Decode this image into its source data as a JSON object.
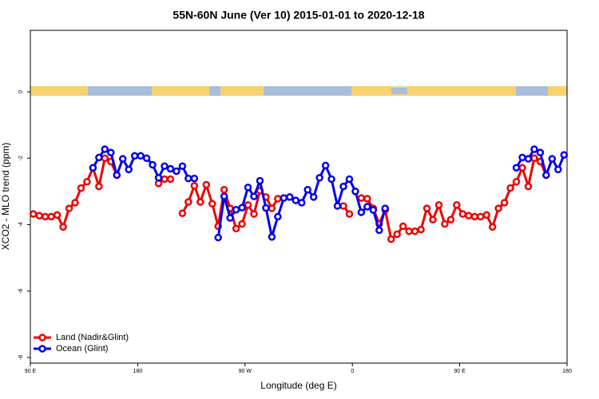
{
  "chart_data": {
    "type": "line",
    "title": "55N-60N June (Ver 10)   2015-01-01 to 2020-12-18",
    "x_label": "Longitude (deg E)",
    "y_label": "XCO2 - MLO trend (ppm)",
    "xlim": [
      90,
      540
    ],
    "ylim": [
      -8.17,
      1.85
    ],
    "xticks": [
      {
        "value": 90,
        "label": "90 E"
      },
      {
        "value": 180,
        "label": "180"
      },
      {
        "value": 270,
        "label": "90 W"
      },
      {
        "value": 360,
        "label": "0"
      },
      {
        "value": 450,
        "label": "90 E"
      },
      {
        "value": 540,
        "label": "180"
      }
    ],
    "yticks": [
      0,
      -2,
      -4,
      -6,
      -8
    ],
    "legend": "bottom left",
    "x": [
      92.5,
      97.5,
      102.5,
      107.5,
      112.5,
      117.5,
      122.5,
      127.5,
      132.5,
      137.5,
      142.5,
      147.5,
      152.5,
      157.5,
      162.5,
      167.5,
      172.5,
      177.5,
      182.5,
      187.5,
      192.5,
      197.5,
      202.5,
      207.5,
      212.5,
      217.5,
      222.5,
      227.5,
      232.5,
      237.5,
      242.5,
      247.5,
      252.5,
      257.5,
      262.5,
      267.5,
      272.5,
      277.5,
      282.5,
      287.5,
      292.5,
      297.5,
      302.5,
      307.5,
      312.5,
      317.5,
      322.5,
      327.5,
      332.5,
      337.5,
      342.5,
      347.5,
      352.5,
      357.5,
      362.5,
      367.5,
      372.5,
      377.5,
      382.5,
      387.5,
      392.5,
      397.5,
      402.5,
      407.5,
      412.5,
      417.5,
      422.5,
      427.5,
      432.5,
      437.5,
      442.5,
      447.5,
      452.5,
      457.5,
      462.5,
      467.5,
      472.5,
      477.5,
      482.5,
      487.5,
      492.5,
      497.5,
      502.5,
      507.5,
      512.5,
      517.5,
      522.5,
      527.5,
      532.5,
      537.5
    ],
    "series": [
      {
        "name": "Land (Nadir&Glint)",
        "color": "#ee0000",
        "values": [
          -3.68,
          -3.73,
          -3.76,
          -3.76,
          -3.71,
          -4.07,
          -3.51,
          -3.34,
          -2.9,
          -2.71,
          -2.29,
          -2.85,
          -2.0,
          -2.1,
          -2.51,
          null,
          null,
          null,
          null,
          null,
          null,
          -2.76,
          -2.63,
          -2.63,
          null,
          -3.66,
          -3.32,
          -2.83,
          -3.32,
          -2.8,
          -3.37,
          -4.05,
          -2.95,
          -3.51,
          -4.12,
          -3.98,
          -3.41,
          -3.68,
          -2.98,
          -3.17,
          -3.51,
          -3.22,
          null,
          null,
          null,
          null,
          null,
          null,
          null,
          null,
          null,
          null,
          -3.44,
          -3.68,
          null,
          -3.2,
          -3.22,
          -3.51,
          -3.98,
          -3.56,
          -4.44,
          -4.29,
          -4.05,
          -4.2,
          -4.2,
          -4.15,
          -3.51,
          -3.85,
          -3.41,
          -3.98,
          -3.85,
          -3.41,
          -3.68,
          -3.73,
          -3.76,
          -3.76,
          -3.71,
          -4.07,
          -3.51,
          -3.34,
          -2.9,
          -2.71,
          -2.29,
          -2.85,
          -2.0,
          -2.1,
          -2.51,
          null,
          null,
          null
        ]
      },
      {
        "name": "Ocean (Glint)",
        "color": "#0000ee",
        "values": [
          null,
          null,
          null,
          null,
          null,
          null,
          null,
          null,
          null,
          null,
          -2.29,
          -1.98,
          -1.73,
          -1.83,
          -2.51,
          -2.02,
          -2.34,
          -1.93,
          -1.93,
          -2.0,
          -2.2,
          -2.59,
          -2.24,
          -2.32,
          -2.39,
          -2.24,
          -2.61,
          -2.61,
          null,
          null,
          null,
          -4.39,
          -3.15,
          -3.8,
          -3.55,
          -3.49,
          -2.88,
          -3.15,
          -2.68,
          -3.5,
          -4.37,
          -3.76,
          -3.2,
          -3.17,
          -3.27,
          -3.34,
          -2.95,
          -3.17,
          -2.59,
          -2.22,
          -2.63,
          -3.44,
          -2.85,
          -2.63,
          -3.0,
          -3.63,
          -3.46,
          -3.56,
          -4.17,
          -3.51,
          null,
          null,
          null,
          null,
          null,
          null,
          null,
          null,
          null,
          null,
          null,
          null,
          null,
          null,
          null,
          null,
          null,
          null,
          null,
          null,
          null,
          -2.29,
          -1.98,
          -2.02,
          -1.73,
          -1.83,
          -2.51,
          -2.02,
          -2.34,
          -1.9
        ]
      }
    ]
  }
}
